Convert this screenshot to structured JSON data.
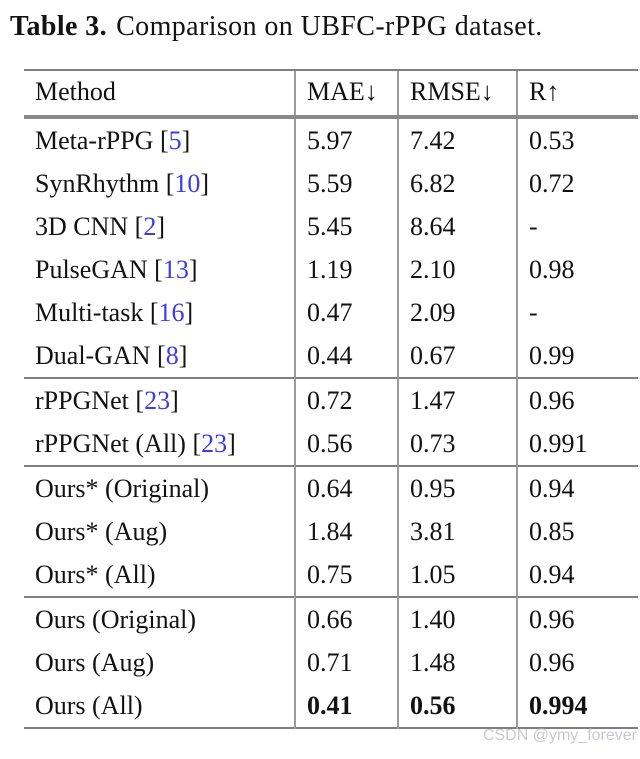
{
  "caption": {
    "label": "Table 3.",
    "text": "Comparison on UBFC-rPPG dataset."
  },
  "watermark": "CSDN @ymy_forever",
  "colors": {
    "citation_blue": "#3b3beb",
    "rule_gray": "#7f7f7f",
    "watermark_gray": "#c9c9d1"
  },
  "table": {
    "headers": [
      "Method",
      "MAE↓",
      "RMSE↓",
      "R↑"
    ],
    "groups": [
      {
        "rows": [
          {
            "method": "Meta-rPPG",
            "cite": "5",
            "mae": "5.97",
            "rmse": "7.42",
            "r": "0.53",
            "bold_values": false
          },
          {
            "method": "SynRhythm",
            "cite": "10",
            "mae": "5.59",
            "rmse": "6.82",
            "r": "0.72",
            "bold_values": false
          },
          {
            "method": "3D CNN",
            "cite": "2",
            "mae": "5.45",
            "rmse": "8.64",
            "r": "-",
            "bold_values": false
          },
          {
            "method": "PulseGAN",
            "cite": "13",
            "mae": "1.19",
            "rmse": "2.10",
            "r": "0.98",
            "bold_values": false
          },
          {
            "method": "Multi-task",
            "cite": "16",
            "mae": "0.47",
            "rmse": "2.09",
            "r": "-",
            "bold_values": false
          },
          {
            "method": "Dual-GAN",
            "cite": "8",
            "mae": "0.44",
            "rmse": "0.67",
            "r": "0.99",
            "bold_values": false
          }
        ]
      },
      {
        "rows": [
          {
            "method": "rPPGNet",
            "cite": "23",
            "mae": "0.72",
            "rmse": "1.47",
            "r": "0.96",
            "bold_values": false
          },
          {
            "method": "rPPGNet (All)",
            "cite": "23",
            "mae": "0.56",
            "rmse": "0.73",
            "r": "0.991",
            "bold_values": false
          }
        ]
      },
      {
        "rows": [
          {
            "method": "Ours* (Original)",
            "cite": null,
            "mae": "0.64",
            "rmse": "0.95",
            "r": "0.94",
            "bold_values": false
          },
          {
            "method": "Ours* (Aug)",
            "cite": null,
            "mae": "1.84",
            "rmse": "3.81",
            "r": "0.85",
            "bold_values": false
          },
          {
            "method": "Ours* (All)",
            "cite": null,
            "mae": "0.75",
            "rmse": "1.05",
            "r": "0.94",
            "bold_values": false
          }
        ]
      },
      {
        "rows": [
          {
            "method": "Ours (Original)",
            "cite": null,
            "mae": "0.66",
            "rmse": "1.40",
            "r": "0.96",
            "bold_values": false
          },
          {
            "method": "Ours (Aug)",
            "cite": null,
            "mae": "0.71",
            "rmse": "1.48",
            "r": "0.96",
            "bold_values": false
          },
          {
            "method": "Ours (All)",
            "cite": null,
            "mae": "0.41",
            "rmse": "0.56",
            "r": "0.994",
            "bold_values": true
          }
        ]
      }
    ]
  }
}
